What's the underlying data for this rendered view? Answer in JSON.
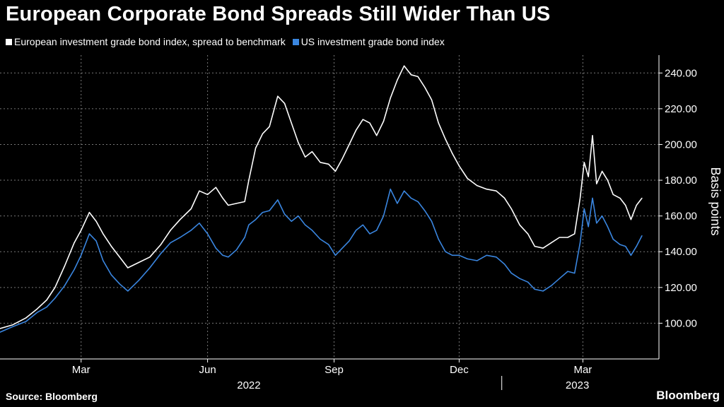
{
  "title": "European Corporate Bond Spreads Still Wider Than US",
  "source": "Source: Bloomberg",
  "brand": "Bloomberg",
  "colors": {
    "background": "#000000",
    "europe": "#ffffff",
    "us": "#3a86e0",
    "grid": "#777777"
  },
  "chart_data": {
    "type": "line",
    "ylabel": "Basis points",
    "ylim": [
      80,
      250
    ],
    "yticks": [
      "100.00",
      "120.00",
      "140.00",
      "160.00",
      "180.00",
      "200.00",
      "220.00",
      "240.00"
    ],
    "ytick_values": [
      100,
      120,
      140,
      160,
      180,
      200,
      220,
      240
    ],
    "grid": "dashed",
    "legend_placement": "top-left",
    "x_axis": {
      "start": "2022-01-01",
      "end": "2023-04-13",
      "month_ticks": [
        {
          "label": "Mar",
          "date": "2022-03-01"
        },
        {
          "label": "Jun",
          "date": "2022-06-01"
        },
        {
          "label": "Sep",
          "date": "2022-09-01"
        },
        {
          "label": "Dec",
          "date": "2022-12-01"
        },
        {
          "label": "Mar",
          "date": "2023-03-01"
        }
      ],
      "year_labels": [
        {
          "label": "2022",
          "date": "2022-07-01"
        },
        {
          "label": "2023",
          "date": "2023-02-25"
        }
      ],
      "year_divider": "2023-01-01"
    },
    "series": [
      {
        "name": "European investment grade bond index, spread to benchmark",
        "color": "#ffffff",
        "points": [
          [
            "2022-01-01",
            97
          ],
          [
            "2022-01-10",
            99
          ],
          [
            "2022-01-20",
            103
          ],
          [
            "2022-01-28",
            108
          ],
          [
            "2022-02-04",
            113
          ],
          [
            "2022-02-10",
            120
          ],
          [
            "2022-02-17",
            132
          ],
          [
            "2022-02-24",
            145
          ],
          [
            "2022-03-01",
            152
          ],
          [
            "2022-03-07",
            162
          ],
          [
            "2022-03-12",
            157
          ],
          [
            "2022-03-17",
            150
          ],
          [
            "2022-03-23",
            143
          ],
          [
            "2022-03-29",
            137
          ],
          [
            "2022-04-04",
            131
          ],
          [
            "2022-04-12",
            134
          ],
          [
            "2022-04-20",
            137
          ],
          [
            "2022-04-28",
            144
          ],
          [
            "2022-05-05",
            152
          ],
          [
            "2022-05-12",
            158
          ],
          [
            "2022-05-20",
            164
          ],
          [
            "2022-05-26",
            174
          ],
          [
            "2022-06-01",
            172
          ],
          [
            "2022-06-07",
            176
          ],
          [
            "2022-06-12",
            170
          ],
          [
            "2022-06-16",
            166
          ],
          [
            "2022-06-22",
            167
          ],
          [
            "2022-06-28",
            168
          ],
          [
            "2022-07-01",
            180
          ],
          [
            "2022-07-06",
            198
          ],
          [
            "2022-07-11",
            206
          ],
          [
            "2022-07-16",
            210
          ],
          [
            "2022-07-22",
            227
          ],
          [
            "2022-07-27",
            223
          ],
          [
            "2022-08-01",
            212
          ],
          [
            "2022-08-06",
            201
          ],
          [
            "2022-08-11",
            193
          ],
          [
            "2022-08-16",
            196
          ],
          [
            "2022-08-22",
            190
          ],
          [
            "2022-08-28",
            189
          ],
          [
            "2022-09-02",
            185
          ],
          [
            "2022-09-07",
            192
          ],
          [
            "2022-09-12",
            200
          ],
          [
            "2022-09-17",
            208
          ],
          [
            "2022-09-22",
            214
          ],
          [
            "2022-09-27",
            212
          ],
          [
            "2022-10-02",
            205
          ],
          [
            "2022-10-07",
            213
          ],
          [
            "2022-10-12",
            226
          ],
          [
            "2022-10-17",
            236
          ],
          [
            "2022-10-22",
            244
          ],
          [
            "2022-10-27",
            239
          ],
          [
            "2022-11-01",
            238
          ],
          [
            "2022-11-06",
            232
          ],
          [
            "2022-11-11",
            225
          ],
          [
            "2022-11-16",
            212
          ],
          [
            "2022-11-21",
            203
          ],
          [
            "2022-11-26",
            195
          ],
          [
            "2022-12-01",
            188
          ],
          [
            "2022-12-07",
            181
          ],
          [
            "2022-12-14",
            177
          ],
          [
            "2022-12-21",
            175
          ],
          [
            "2022-12-28",
            174
          ],
          [
            "2023-01-03",
            170
          ],
          [
            "2023-01-08",
            164
          ],
          [
            "2023-01-14",
            155
          ],
          [
            "2023-01-20",
            150
          ],
          [
            "2023-01-25",
            143
          ],
          [
            "2023-01-31",
            142
          ],
          [
            "2023-02-06",
            145
          ],
          [
            "2023-02-12",
            148
          ],
          [
            "2023-02-18",
            148
          ],
          [
            "2023-02-23",
            150
          ],
          [
            "2023-02-27",
            170
          ],
          [
            "2023-03-02",
            190
          ],
          [
            "2023-03-05",
            182
          ],
          [
            "2023-03-08",
            205
          ],
          [
            "2023-03-11",
            178
          ],
          [
            "2023-03-15",
            185
          ],
          [
            "2023-03-19",
            180
          ],
          [
            "2023-03-23",
            172
          ],
          [
            "2023-03-28",
            170
          ],
          [
            "2023-04-01",
            166
          ],
          [
            "2023-04-05",
            158
          ],
          [
            "2023-04-09",
            166
          ],
          [
            "2023-04-13",
            170
          ]
        ]
      },
      {
        "name": "US investment grade bond index",
        "color": "#3a86e0",
        "points": [
          [
            "2022-01-01",
            95
          ],
          [
            "2022-01-10",
            98
          ],
          [
            "2022-01-20",
            101
          ],
          [
            "2022-01-28",
            106
          ],
          [
            "2022-02-04",
            109
          ],
          [
            "2022-02-10",
            114
          ],
          [
            "2022-02-17",
            121
          ],
          [
            "2022-02-24",
            130
          ],
          [
            "2022-03-01",
            138
          ],
          [
            "2022-03-07",
            150
          ],
          [
            "2022-03-12",
            146
          ],
          [
            "2022-03-17",
            135
          ],
          [
            "2022-03-23",
            127
          ],
          [
            "2022-03-29",
            122
          ],
          [
            "2022-04-04",
            118
          ],
          [
            "2022-04-12",
            124
          ],
          [
            "2022-04-20",
            131
          ],
          [
            "2022-04-28",
            139
          ],
          [
            "2022-05-05",
            145
          ],
          [
            "2022-05-12",
            148
          ],
          [
            "2022-05-20",
            152
          ],
          [
            "2022-05-26",
            156
          ],
          [
            "2022-06-01",
            150
          ],
          [
            "2022-06-07",
            142
          ],
          [
            "2022-06-12",
            138
          ],
          [
            "2022-06-16",
            137
          ],
          [
            "2022-06-22",
            141
          ],
          [
            "2022-06-28",
            148
          ],
          [
            "2022-07-01",
            155
          ],
          [
            "2022-07-06",
            158
          ],
          [
            "2022-07-11",
            162
          ],
          [
            "2022-07-16",
            163
          ],
          [
            "2022-07-22",
            169
          ],
          [
            "2022-07-27",
            161
          ],
          [
            "2022-08-01",
            157
          ],
          [
            "2022-08-06",
            160
          ],
          [
            "2022-08-11",
            155
          ],
          [
            "2022-08-16",
            152
          ],
          [
            "2022-08-22",
            147
          ],
          [
            "2022-08-28",
            144
          ],
          [
            "2022-09-02",
            138
          ],
          [
            "2022-09-07",
            142
          ],
          [
            "2022-09-12",
            146
          ],
          [
            "2022-09-17",
            152
          ],
          [
            "2022-09-22",
            155
          ],
          [
            "2022-09-27",
            150
          ],
          [
            "2022-10-02",
            152
          ],
          [
            "2022-10-07",
            160
          ],
          [
            "2022-10-12",
            175
          ],
          [
            "2022-10-17",
            167
          ],
          [
            "2022-10-22",
            174
          ],
          [
            "2022-10-27",
            170
          ],
          [
            "2022-11-01",
            168
          ],
          [
            "2022-11-06",
            163
          ],
          [
            "2022-11-11",
            157
          ],
          [
            "2022-11-16",
            147
          ],
          [
            "2022-11-21",
            140
          ],
          [
            "2022-11-26",
            138
          ],
          [
            "2022-12-01",
            138
          ],
          [
            "2022-12-07",
            136
          ],
          [
            "2022-12-14",
            135
          ],
          [
            "2022-12-21",
            138
          ],
          [
            "2022-12-28",
            137
          ],
          [
            "2023-01-03",
            133
          ],
          [
            "2023-01-08",
            128
          ],
          [
            "2023-01-14",
            125
          ],
          [
            "2023-01-20",
            123
          ],
          [
            "2023-01-25",
            119
          ],
          [
            "2023-01-31",
            118
          ],
          [
            "2023-02-06",
            121
          ],
          [
            "2023-02-12",
            125
          ],
          [
            "2023-02-18",
            129
          ],
          [
            "2023-02-23",
            128
          ],
          [
            "2023-02-27",
            145
          ],
          [
            "2023-03-02",
            164
          ],
          [
            "2023-03-05",
            154
          ],
          [
            "2023-03-08",
            170
          ],
          [
            "2023-03-11",
            156
          ],
          [
            "2023-03-15",
            160
          ],
          [
            "2023-03-19",
            154
          ],
          [
            "2023-03-23",
            147
          ],
          [
            "2023-03-28",
            144
          ],
          [
            "2023-04-01",
            143
          ],
          [
            "2023-04-05",
            138
          ],
          [
            "2023-04-09",
            143
          ],
          [
            "2023-04-13",
            149
          ]
        ]
      }
    ]
  }
}
